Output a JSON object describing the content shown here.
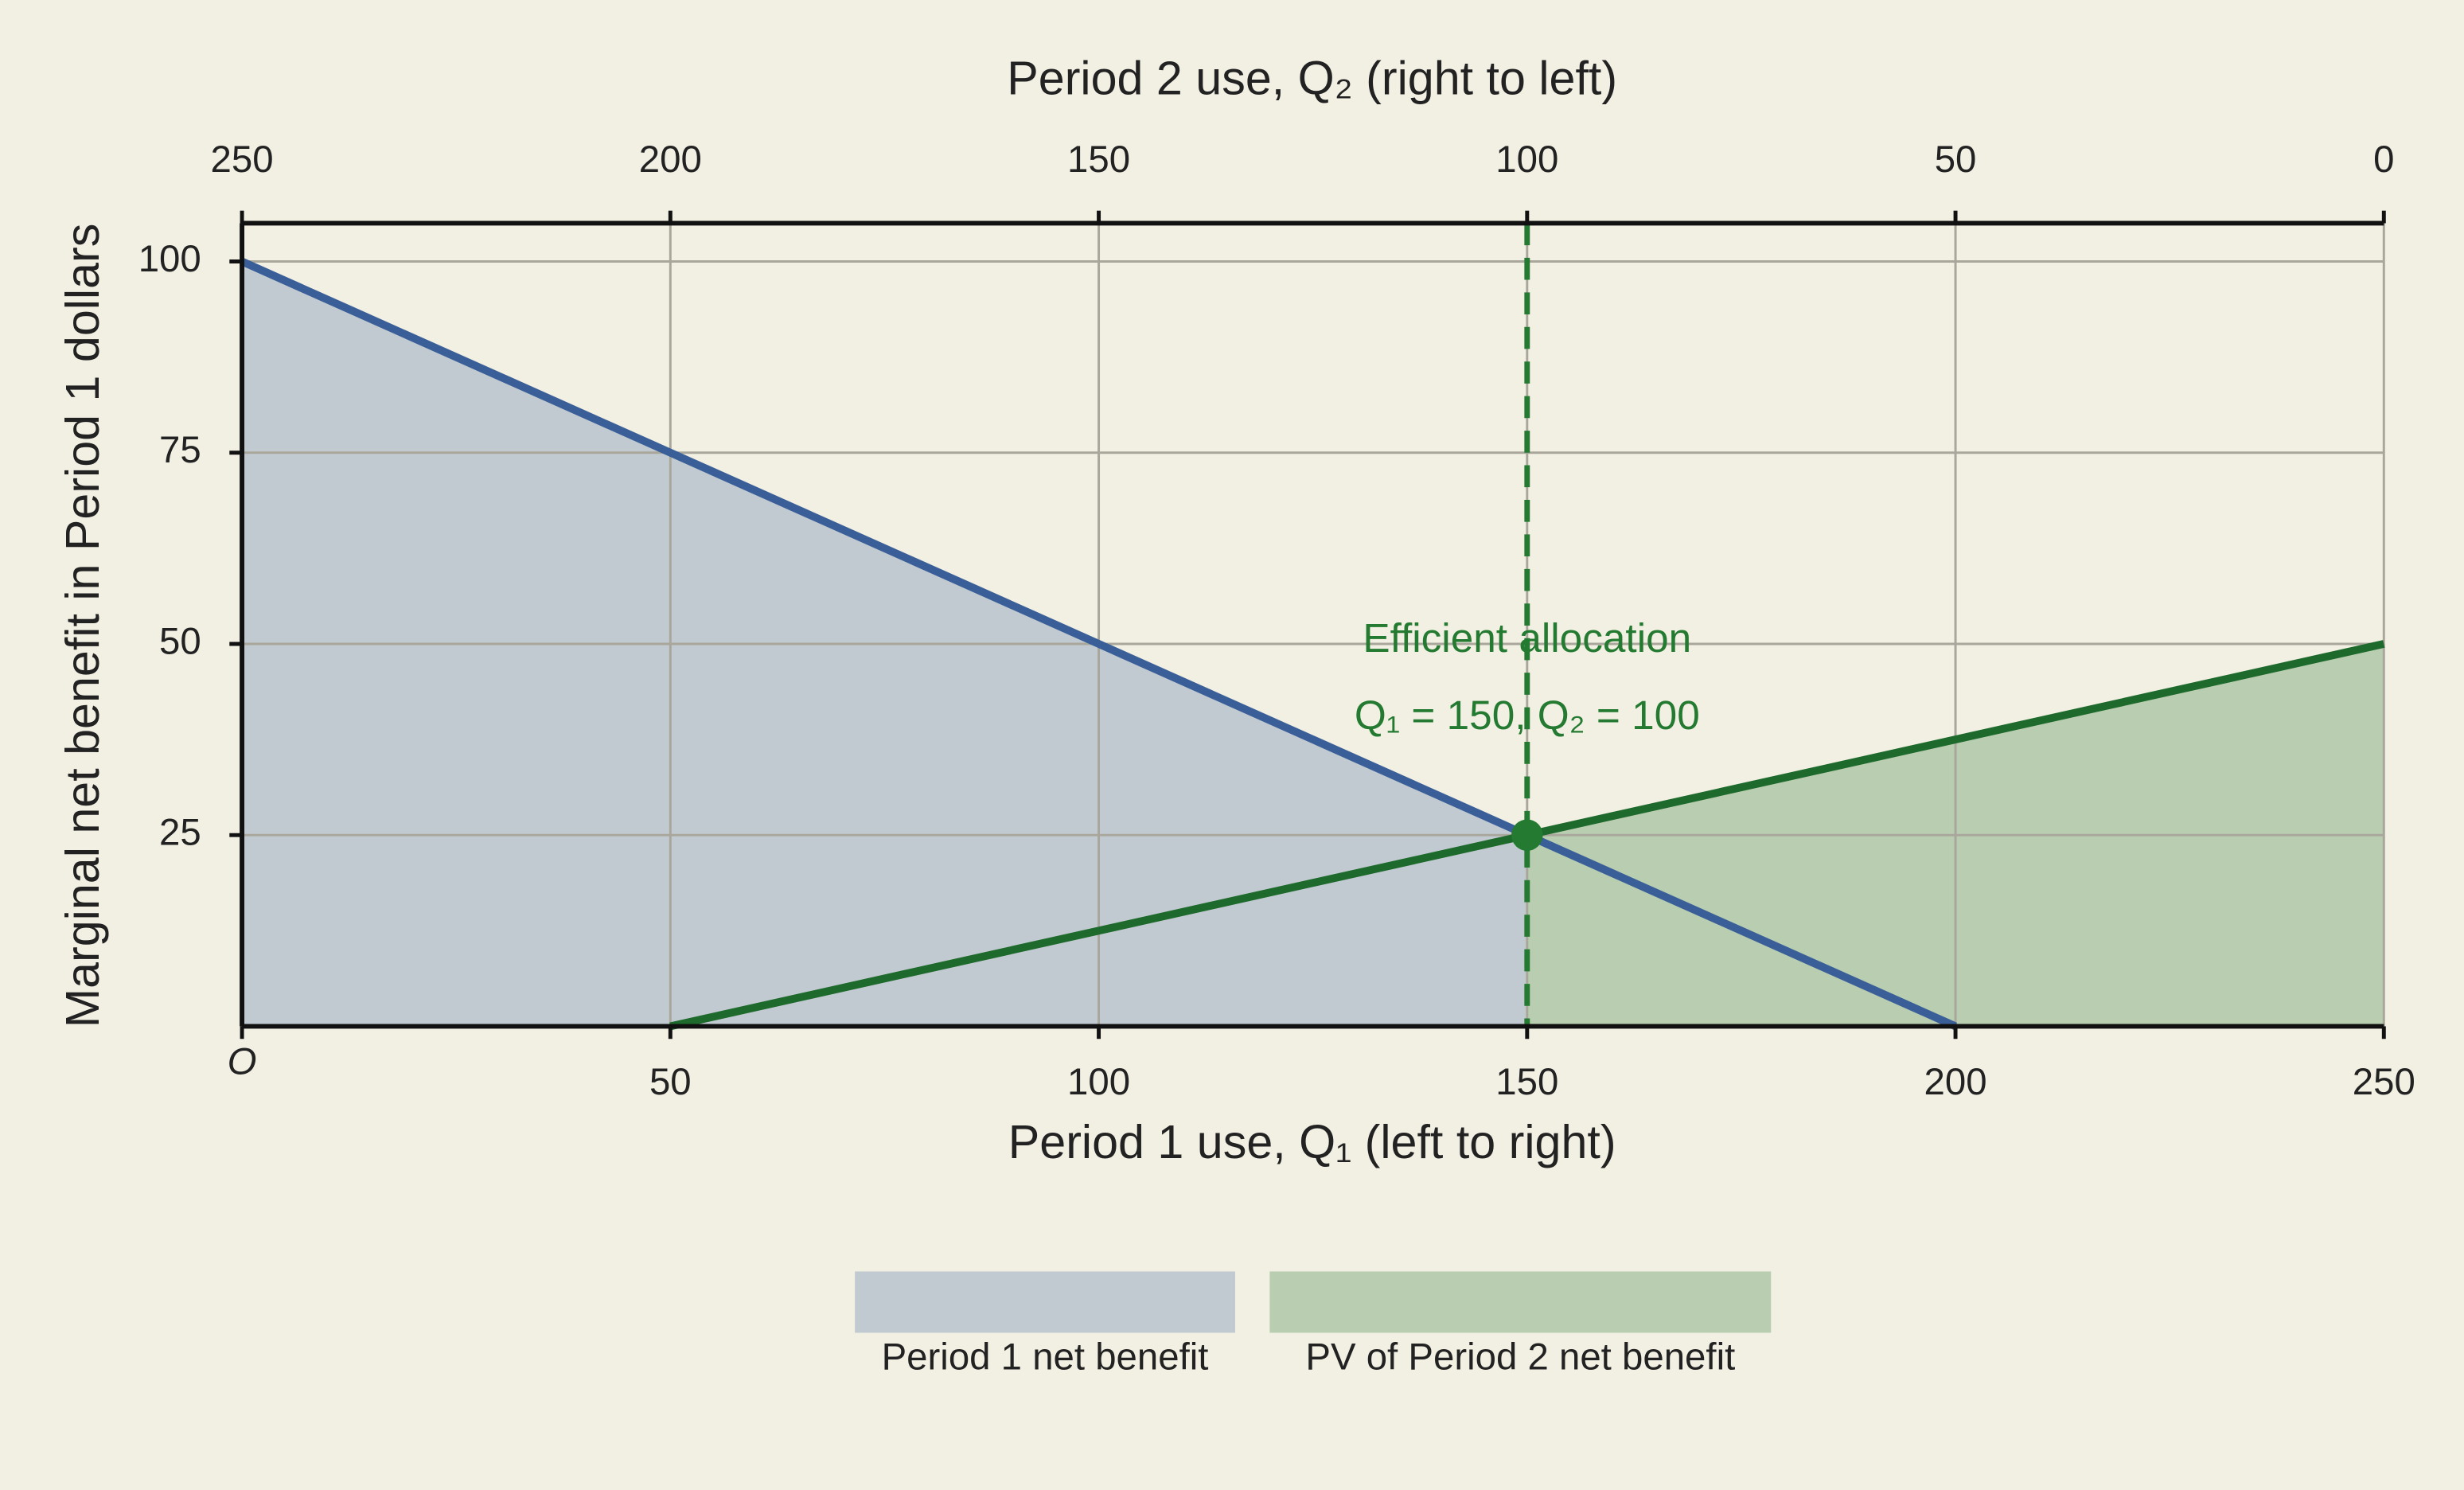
{
  "chart_data": {
    "type": "line",
    "xlabel": "Period 1 use, Q₁  (left to right)",
    "x2label": "Period 2 use, Q₂  (right to left)",
    "ylabel": "Marginal net benefit in Period 1 dollars",
    "xlim": [
      0,
      250
    ],
    "xticks": [
      {
        "value": 0,
        "label": "O"
      },
      50,
      100,
      150,
      200,
      250
    ],
    "x2lim": [
      250,
      0
    ],
    "x2ticks": [
      250,
      200,
      150,
      100,
      50,
      0
    ],
    "ylim": [
      0,
      105
    ],
    "yticks": [
      25,
      50,
      75,
      100
    ],
    "grid": true,
    "series": [
      {
        "name": "Period 1 net benefit",
        "color": "#3a5f98",
        "fill_color": "#c2cad1",
        "x": [
          0,
          200
        ],
        "values": [
          100,
          0
        ]
      },
      {
        "name": "PV of Period 2 net benefit",
        "color": "#1e6a2c",
        "fill_color": "#b9cdb1",
        "x": [
          50,
          250
        ],
        "values": [
          0,
          50
        ]
      }
    ],
    "equilibrium": {
      "x": 150,
      "y": 25,
      "color": "#237a30"
    },
    "annotations": [
      "Efficient allocation",
      "Q₁ = 150, Q₂ = 100"
    ],
    "legend": "bottom"
  }
}
